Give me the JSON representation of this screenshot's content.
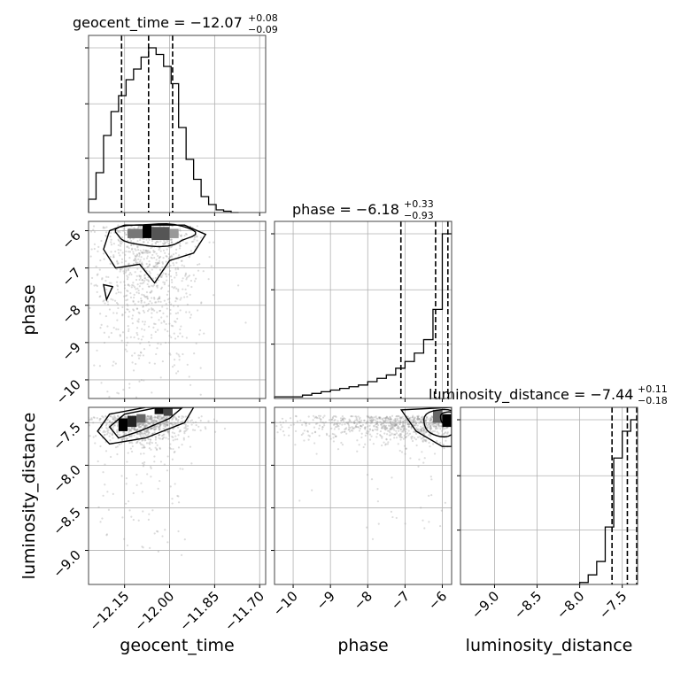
{
  "chart_data": {
    "type": "corner",
    "parameters": [
      "geocent_time",
      "phase",
      "luminosity_distance"
    ],
    "titles": [
      {
        "param": "geocent_time",
        "text": "geocent_time = −12.07",
        "sup": "+0.08",
        "sub": "−0.09"
      },
      {
        "param": "phase",
        "text": "phase = −6.18",
        "sup": "+0.33",
        "sub": "−0.93"
      },
      {
        "param": "luminosity_distance",
        "text": "luminosity_distance = −7.44",
        "sup": "+0.11",
        "sub": "−0.18"
      }
    ],
    "axis_labels": {
      "x": [
        "geocent_time",
        "phase",
        "luminosity_distance"
      ],
      "y": [
        "phase",
        "luminosity_distance"
      ]
    },
    "ranges": {
      "geocent_time": [
        -12.27,
        -11.68
      ],
      "phase": [
        -10.5,
        -5.75
      ],
      "luminosity_distance": [
        -9.4,
        -7.32
      ]
    },
    "ticks": {
      "geocent_time": {
        "values": [
          -12.15,
          -12.0,
          -11.85,
          -11.7
        ],
        "labels": [
          "−12.15",
          "−12.00",
          "−11.85",
          "−11.70"
        ]
      },
      "phase_x": {
        "values": [
          -10,
          -9,
          -8,
          -7,
          -6
        ],
        "labels": [
          "−10",
          "−9",
          "−8",
          "−7",
          "−6"
        ]
      },
      "phase_y": {
        "values": [
          -6,
          -7,
          -8,
          -9,
          -10
        ],
        "labels": [
          "−6",
          "−7",
          "−8",
          "−9",
          "−10"
        ]
      },
      "luminosity_distance_x": {
        "values": [
          -9.0,
          -8.5,
          -8.0,
          -7.5
        ],
        "labels": [
          "−9.0",
          "−8.5",
          "−8.0",
          "−7.5"
        ]
      },
      "luminosity_distance_y": {
        "values": [
          -7.5,
          -8.0,
          -8.5,
          -9.0
        ],
        "labels": [
          "−7.5",
          "−8.0",
          "−8.5",
          "−9.0"
        ]
      }
    },
    "quantiles": {
      "geocent_time": [
        -12.16,
        -12.07,
        -11.99
      ],
      "phase": [
        -7.11,
        -6.18,
        -5.85
      ],
      "luminosity_distance": [
        -7.62,
        -7.44,
        -7.33
      ]
    },
    "histograms": {
      "geocent_time": {
        "edges": [
          -12.27,
          -12.245,
          -12.22,
          -12.195,
          -12.17,
          -12.145,
          -12.12,
          -12.095,
          -12.07,
          -12.045,
          -12.02,
          -11.995,
          -11.97,
          -11.945,
          -11.92,
          -11.895,
          -11.87,
          -11.845,
          -11.82,
          -11.795,
          -11.77
        ],
        "counts": [
          0.1,
          0.3,
          0.58,
          0.76,
          0.88,
          1.0,
          1.08,
          1.17,
          1.24,
          1.19,
          1.1,
          0.97,
          0.64,
          0.4,
          0.25,
          0.12,
          0.06,
          0.02,
          0.01,
          0.0
        ]
      },
      "phase": {
        "edges": [
          -10.5,
          -10.25,
          -10.0,
          -9.75,
          -9.5,
          -9.25,
          -9.0,
          -8.75,
          -8.5,
          -8.25,
          -8.0,
          -7.75,
          -7.5,
          -7.25,
          -7.0,
          -6.75,
          -6.5,
          -6.25,
          -6.0,
          -5.75
        ],
        "counts": [
          0.01,
          0.01,
          0.01,
          0.02,
          0.03,
          0.04,
          0.05,
          0.06,
          0.07,
          0.08,
          0.1,
          0.12,
          0.14,
          0.18,
          0.22,
          0.27,
          0.35,
          0.53,
          0.98
        ]
      },
      "luminosity_distance": {
        "edges": [
          -9.4,
          -9.3,
          -9.2,
          -9.1,
          -9.0,
          -8.9,
          -8.8,
          -8.7,
          -8.6,
          -8.5,
          -8.4,
          -8.3,
          -8.2,
          -8.1,
          -8.0,
          -7.9,
          -7.8,
          -7.7,
          -7.6,
          -7.5,
          -7.4,
          -7.32
        ],
        "counts": [
          0,
          0,
          0,
          0,
          0,
          0,
          0,
          0,
          0,
          0,
          0,
          0,
          0,
          0,
          0.01,
          0.05,
          0.12,
          0.3,
          0.66,
          0.8,
          0.86
        ]
      }
    },
    "grid": true,
    "contours": "black lines, 2D-hist shading in grey",
    "scatter_color": "#9a9a9a"
  }
}
